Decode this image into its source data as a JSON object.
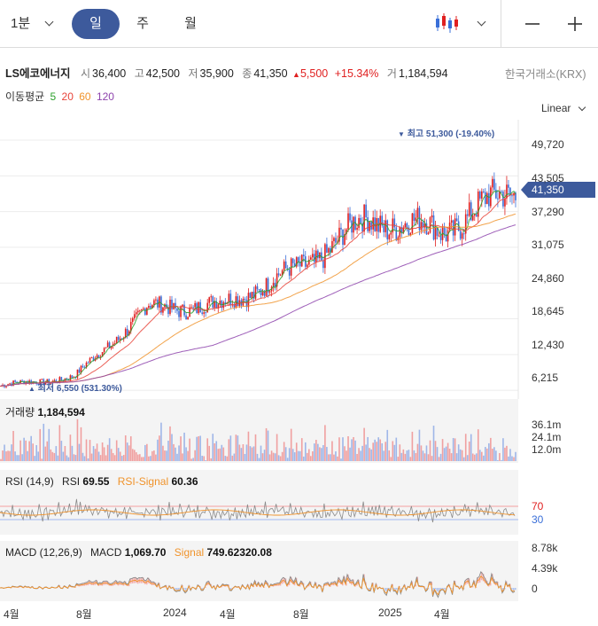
{
  "toolbar": {
    "interval": "1분",
    "tabs": [
      "일",
      "주",
      "월"
    ],
    "active_tab": "일",
    "chart_style_icon": "candlestick-icon",
    "zoom_out_icon": "minus-icon",
    "zoom_in_icon": "plus-icon"
  },
  "stock": {
    "name": "LS에코에너지",
    "open_label": "시",
    "open": "36,400",
    "high_label": "고",
    "high": "42,500",
    "low_label": "저",
    "low": "35,900",
    "close_label": "종",
    "close": "41,350",
    "change": "5,500",
    "change_pct": "+15.34%",
    "volume_label": "거",
    "volume": "1,184,594",
    "exchange": "한국거래소(KRX)",
    "colors": {
      "up": "#e02020",
      "down": "#3a6fd8"
    }
  },
  "ma": {
    "label": "이동평균",
    "periods": [
      {
        "value": "5",
        "color": "#2ca02c"
      },
      {
        "value": "20",
        "color": "#e8443a"
      },
      {
        "value": "60",
        "color": "#f0932b"
      },
      {
        "value": "120",
        "color": "#8e44ad"
      }
    ]
  },
  "price_chart": {
    "scale": "Linear",
    "y_ticks": [
      "49,720",
      "43,505",
      "37,290",
      "31,075",
      "24,860",
      "18,645",
      "12,430",
      "6,215"
    ],
    "current_price": "41,350",
    "high_annotation": "최고 51,300 (-19.40%)",
    "low_annotation": "최저 6,550 (531.30%)",
    "accent": "#3d5a9c"
  },
  "volume_panel": {
    "title": "거래량",
    "value": "1,184,594",
    "y_ticks": [
      "36.1m",
      "24.1m",
      "12.0m"
    ]
  },
  "rsi_panel": {
    "params": "RSI (14,9)",
    "rsi_label": "RSI",
    "rsi_value": "69.55",
    "signal_label": "RSI-Signal",
    "signal_value": "60.36",
    "upper": "70",
    "lower": "30"
  },
  "macd_panel": {
    "params": "MACD (12,26,9)",
    "macd_label": "MACD",
    "macd_value": "1,069.70",
    "signal_label": "Signal",
    "signal_value": "749.62320.08",
    "y_ticks": [
      "8.78k",
      "4.39k",
      "0"
    ]
  },
  "x_axis": {
    "labels": [
      "4월",
      "8월",
      "2024",
      "4월",
      "8월",
      "2025",
      "4월"
    ]
  },
  "chart_data": {
    "type": "line",
    "title": "",
    "x": [
      "2023-04",
      "2023-08",
      "2024-01",
      "2024-04",
      "2024-08",
      "2025-01",
      "2025-04",
      "2025-08"
    ],
    "series": [
      {
        "values": [
          7000,
          8500,
          20500,
          21000,
          27000,
          36000,
          34000,
          41350
        ]
      }
    ],
    "ylim": [
      5000,
      52500
    ]
  }
}
